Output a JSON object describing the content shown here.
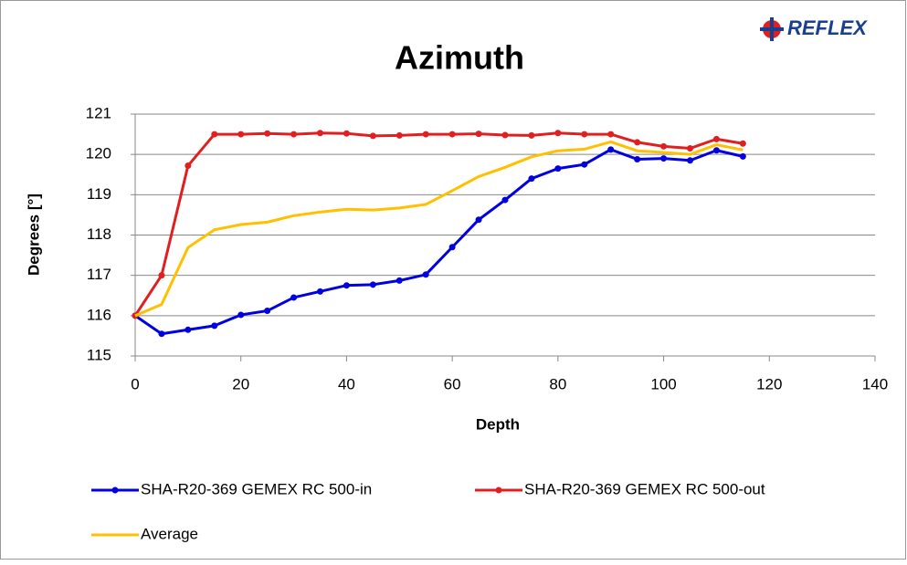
{
  "chart_data": {
    "type": "line",
    "title": "Azimuth",
    "logo": "REFLEX",
    "xlabel": "Depth",
    "ylabel": "Degrees [°]",
    "x": [
      0,
      5,
      10,
      15,
      20,
      25,
      30,
      35,
      40,
      45,
      50,
      55,
      60,
      65,
      70,
      75,
      80,
      85,
      90,
      95,
      100,
      105,
      110,
      115
    ],
    "series": [
      {
        "name": "SHA-R20-369 GEMEX RC 500-in",
        "color": "#0000e0",
        "marker": true,
        "values": [
          116.0,
          115.55,
          115.65,
          115.75,
          116.02,
          116.12,
          116.45,
          116.6,
          116.75,
          116.77,
          116.87,
          117.02,
          117.7,
          118.38,
          118.87,
          119.4,
          119.65,
          119.75,
          120.12,
          119.88,
          119.9,
          119.85,
          120.1,
          119.95
        ]
      },
      {
        "name": "SHA-R20-369 GEMEX RC 500-out",
        "color": "#e02020",
        "marker": true,
        "values": [
          116.0,
          117.0,
          119.72,
          120.5,
          120.5,
          120.52,
          120.5,
          120.53,
          120.52,
          120.46,
          120.47,
          120.5,
          120.5,
          120.51,
          120.48,
          120.47,
          120.53,
          120.5,
          120.5,
          120.3,
          120.2,
          120.15,
          120.38,
          120.27
        ]
      },
      {
        "name": "Average",
        "color": "#ffc000",
        "marker": false,
        "values": [
          116.0,
          116.28,
          117.69,
          118.13,
          118.26,
          118.32,
          118.48,
          118.57,
          118.64,
          118.62,
          118.67,
          118.76,
          119.1,
          119.45,
          119.68,
          119.94,
          120.09,
          120.13,
          120.31,
          120.09,
          120.05,
          120.0,
          120.24,
          120.11
        ]
      }
    ],
    "xlim": [
      0,
      140
    ],
    "xticks": [
      0,
      20,
      40,
      60,
      80,
      100,
      120,
      140
    ],
    "ylim": [
      115,
      121
    ],
    "yticks": [
      115,
      116,
      117,
      118,
      119,
      120,
      121
    ],
    "grid": true
  }
}
